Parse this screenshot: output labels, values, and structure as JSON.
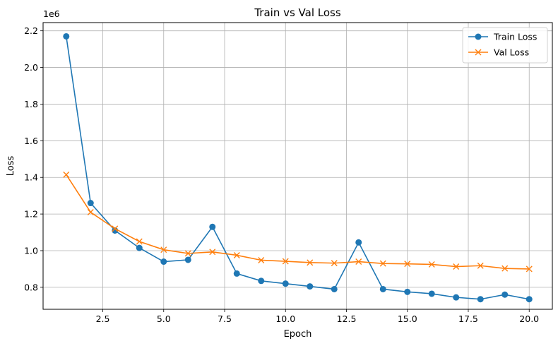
{
  "chart_data": {
    "type": "line",
    "title": "Train vs Val Loss",
    "xlabel": "Epoch",
    "ylabel": "Loss",
    "y_offset_label": "1e6",
    "y_scale_factor": 1000000,
    "grid": true,
    "legend_placement": "top-right",
    "xlim": [
      0.05,
      20.95
    ],
    "ylim": [
      680000,
      2245000
    ],
    "x_ticks": [
      2.5,
      5.0,
      7.5,
      10.0,
      12.5,
      15.0,
      17.5,
      20.0
    ],
    "x_tick_labels": [
      "2.5",
      "5.0",
      "7.5",
      "10.0",
      "12.5",
      "15.0",
      "17.5",
      "20.0"
    ],
    "y_ticks": [
      800000,
      1000000,
      1200000,
      1400000,
      1600000,
      1800000,
      2000000,
      2200000
    ],
    "y_tick_labels": [
      "0.8",
      "1.0",
      "1.2",
      "1.4",
      "1.6",
      "1.8",
      "2.0",
      "2.2"
    ],
    "x": [
      1,
      2,
      3,
      4,
      5,
      6,
      7,
      8,
      9,
      10,
      11,
      12,
      13,
      14,
      15,
      16,
      17,
      18,
      19,
      20
    ],
    "series": [
      {
        "name": "Train Loss",
        "color": "#1f77b4",
        "marker": "circle",
        "values": [
          2170000,
          1260000,
          1110000,
          1015000,
          940000,
          950000,
          1130000,
          875000,
          835000,
          820000,
          805000,
          790000,
          1045000,
          790000,
          775000,
          765000,
          745000,
          735000,
          760000,
          735000
        ]
      },
      {
        "name": "Val Loss",
        "color": "#ff7f0e",
        "marker": "x",
        "values": [
          1415000,
          1210000,
          1120000,
          1050000,
          1005000,
          985000,
          993000,
          975000,
          948000,
          942000,
          935000,
          932000,
          940000,
          930000,
          928000,
          925000,
          913000,
          918000,
          903000,
          900000
        ]
      }
    ]
  }
}
